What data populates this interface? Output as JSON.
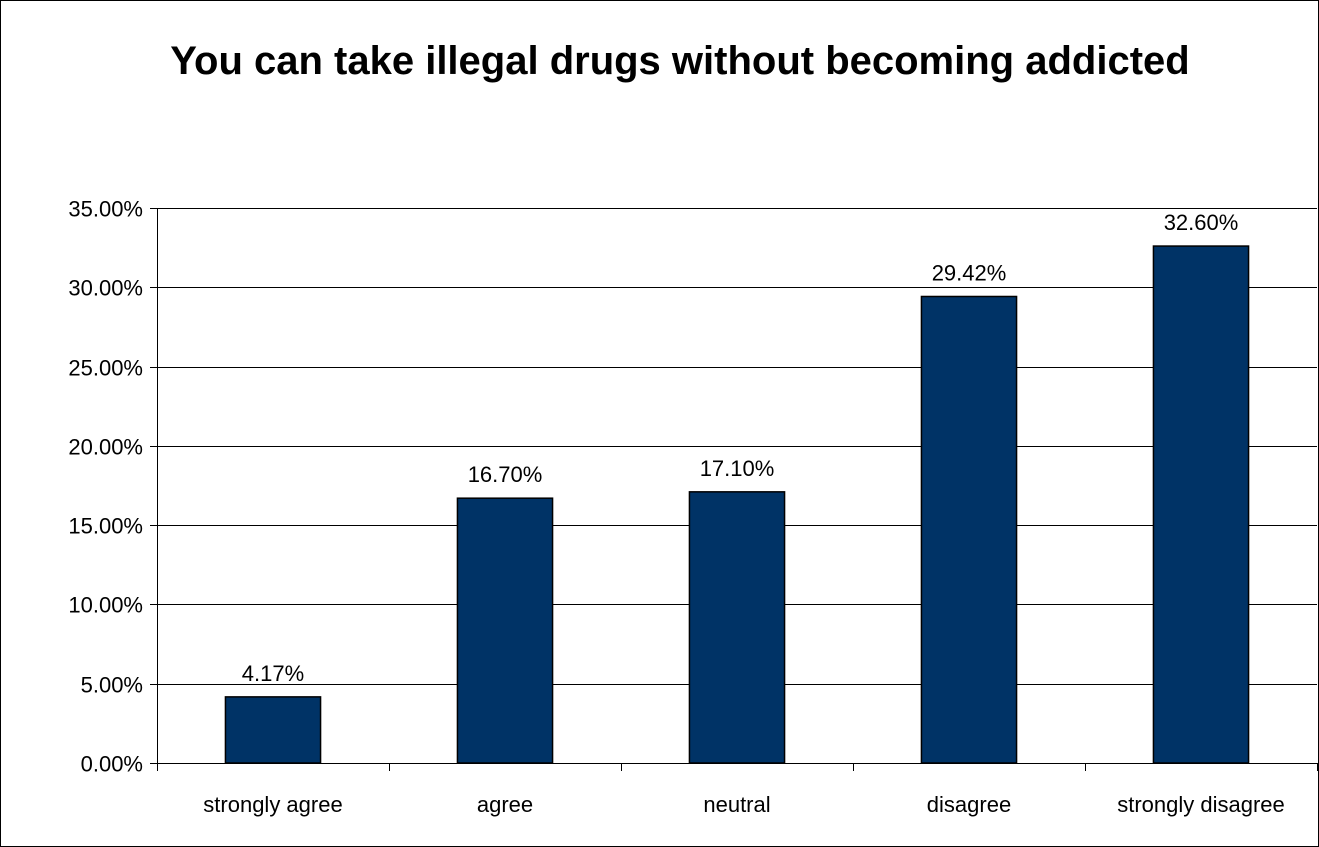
{
  "chart_data": {
    "type": "bar",
    "title": "You can take illegal drugs without becoming addicted",
    "categories": [
      "strongly agree",
      "agree",
      "neutral",
      "disagree",
      "strongly disagree"
    ],
    "values": [
      4.17,
      16.7,
      17.1,
      29.42,
      32.6
    ],
    "data_labels": [
      "4.17%",
      "16.70%",
      "17.10%",
      "29.42%",
      "32.60%"
    ],
    "ylim": [
      0,
      35
    ],
    "yticks": [
      0,
      5,
      10,
      15,
      20,
      25,
      30,
      35
    ],
    "ytick_labels": [
      "0.00%",
      "5.00%",
      "10.00%",
      "15.00%",
      "20.00%",
      "25.00%",
      "30.00%",
      "35.00%"
    ],
    "grid": true,
    "legend": "none",
    "bar_color": "#003366"
  }
}
